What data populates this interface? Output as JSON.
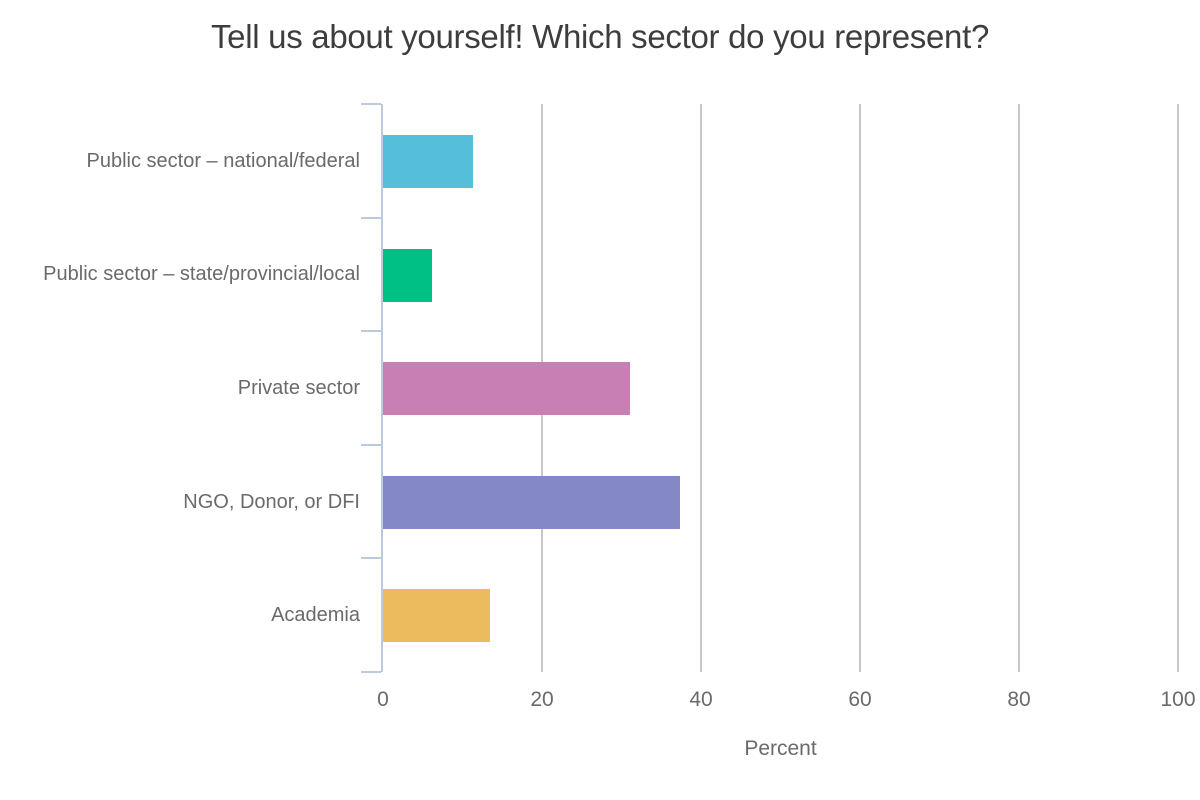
{
  "chart_data": {
    "type": "bar",
    "orientation": "horizontal",
    "title": "Tell us about yourself! Which sector do you represent?",
    "categories": [
      "Public sector – national/federal",
      "Public sector – state/provincial/local",
      "Private sector",
      "NGO, Donor, or DFI",
      "Academia"
    ],
    "values": [
      11.3,
      6.2,
      31.1,
      37.3,
      13.4
    ],
    "bar_colors": [
      "#55BFD9",
      "#00C085",
      "#C780B4",
      "#8489C6",
      "#EBBB5E"
    ],
    "xlabel": "Percent",
    "ylabel": "",
    "x_ticks": [
      0,
      20,
      40,
      60,
      80,
      100
    ],
    "xlim": [
      0,
      100
    ],
    "grid": "vertical-only",
    "legend": "none",
    "colors": {
      "title_text": "#3D3D3D",
      "label_text": "#6A6A6A",
      "axis_line": "#BCCBDB",
      "gridline": "#C7C7C7",
      "background": "#FFFFFF"
    }
  }
}
